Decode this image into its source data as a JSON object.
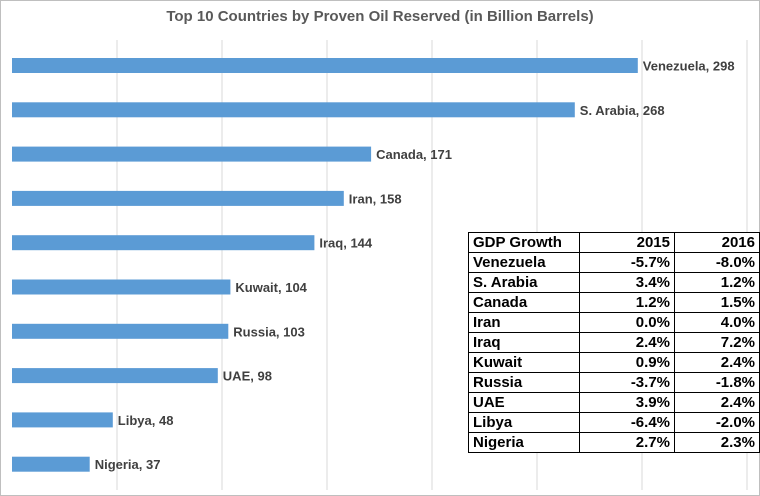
{
  "chart_data": {
    "type": "bar",
    "orientation": "horizontal",
    "title": "Top 10 Countries by Proven Oil Reserved (in Billion Barrels)",
    "categories": [
      "Venezuela",
      "S. Arabia",
      "Canada",
      "Iran",
      "Iraq",
      "Kuwait",
      "Russia",
      "UAE",
      "Libya",
      "Nigeria"
    ],
    "values": [
      298,
      268,
      171,
      158,
      144,
      104,
      103,
      98,
      48,
      37
    ],
    "xlim": [
      0,
      350
    ],
    "grid": true,
    "bar_color": "#5b9bd5",
    "data_labels": [
      "Venezuela, 298",
      "S. Arabia, 268",
      "Canada, 171",
      "Iran, 158",
      "Iraq, 144",
      "Kuwait, 104",
      "Russia, 103",
      "UAE, 98",
      "Libya, 48",
      "Nigeria, 37"
    ]
  },
  "gdp_table": {
    "headers": [
      "GDP Growth",
      "2015",
      "2016"
    ],
    "rows": [
      [
        "Venezuela",
        "-5.7%",
        "-8.0%"
      ],
      [
        "S. Arabia",
        "3.4%",
        "1.2%"
      ],
      [
        "Canada",
        "1.2%",
        "1.5%"
      ],
      [
        "Iran",
        "0.0%",
        "4.0%"
      ],
      [
        "Iraq",
        "2.4%",
        "7.2%"
      ],
      [
        "Kuwait",
        "0.9%",
        "2.4%"
      ],
      [
        "Russia",
        "-3.7%",
        "-1.8%"
      ],
      [
        "UAE",
        "3.9%",
        "2.4%"
      ],
      [
        "Libya",
        "-6.4%",
        "-2.0%"
      ],
      [
        "Nigeria",
        "2.7%",
        "2.3%"
      ]
    ]
  }
}
